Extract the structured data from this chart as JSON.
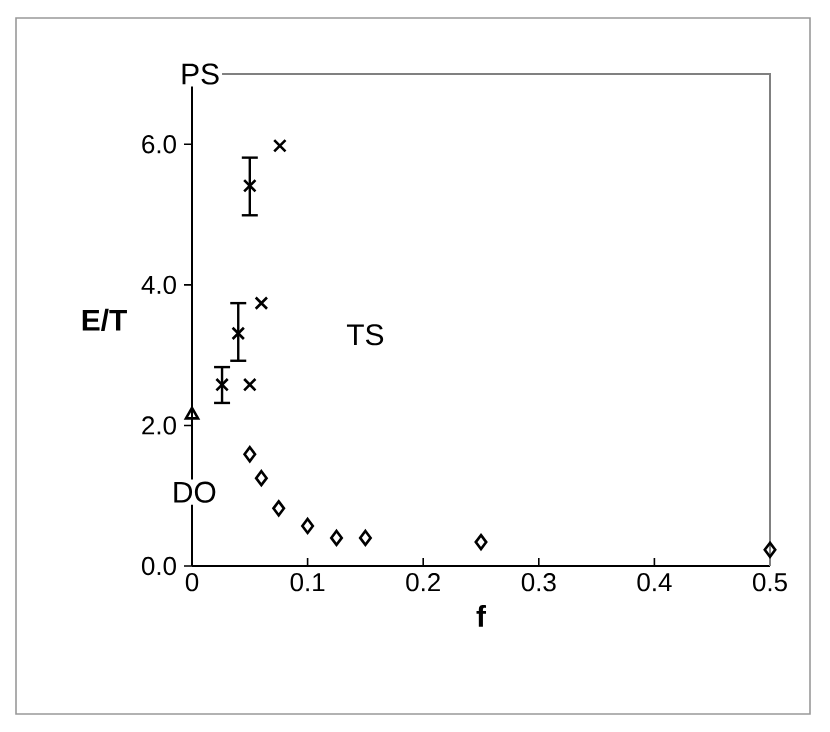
{
  "chart_data": {
    "type": "scatter",
    "xlabel": "f",
    "ylabel": "E/T",
    "xlim": [
      0,
      0.5
    ],
    "ylim": [
      0,
      7
    ],
    "xticks": [
      0,
      0.1,
      0.2,
      0.3,
      0.4,
      0.5
    ],
    "yticks": [
      {
        "value": 0,
        "label": "0.0"
      },
      {
        "value": 2,
        "label": "2.0"
      },
      {
        "value": 4,
        "label": "4.0"
      },
      {
        "value": 6,
        "label": "6.0"
      },
      {
        "value": 7,
        "label": null
      }
    ],
    "series": [
      {
        "color": "#000000",
        "marker": "cross",
        "x": [
          0.026,
          0.04,
          0.05,
          0.05,
          0.06,
          0.076
        ],
        "values": [
          2.58,
          3.31,
          2.58,
          5.41,
          3.74,
          5.98
        ],
        "errors": [
          [
            2.32,
            2.83
          ],
          [
            2.92,
            3.74
          ],
          null,
          [
            4.99,
            5.81
          ],
          null,
          null
        ]
      },
      {
        "color": "#000000",
        "marker": "triangle",
        "x": [
          0
        ],
        "values": [
          2.15
        ]
      },
      {
        "color": "#000000",
        "marker": "diamond",
        "x": [
          0.05,
          0.06,
          0.075,
          0.1,
          0.125,
          0.15,
          0.25,
          0.5
        ],
        "values": [
          1.59,
          1.25,
          0.82,
          0.57,
          0.4,
          0.4,
          0.34,
          0.23
        ]
      }
    ],
    "annotations": [
      {
        "text": "PS",
        "x": 0.007,
        "y": 7
      },
      {
        "text": "TS",
        "x": 0.15,
        "y": 3.29
      },
      {
        "text": "DO",
        "x": 0.002,
        "y": 1.05
      }
    ],
    "grid": false
  }
}
